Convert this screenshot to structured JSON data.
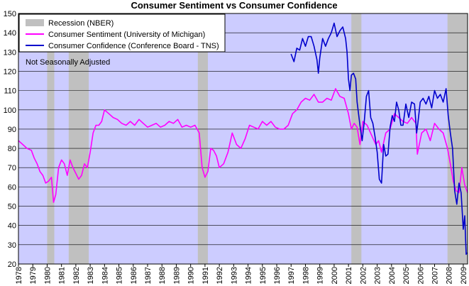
{
  "chart_data": {
    "type": "line",
    "title": "Consumer Sentiment vs Consumer Confidence",
    "annotation": "Not Seasonally Adjusted",
    "xlabel": "",
    "ylabel": "",
    "xlim": [
      1978.0,
      2009.3
    ],
    "ylim": [
      20,
      150
    ],
    "grid": true,
    "legend_placement": "top-left",
    "y_ticks": [
      20,
      30,
      40,
      50,
      60,
      70,
      80,
      90,
      100,
      110,
      120,
      130,
      140,
      150
    ],
    "x_ticks": [
      "1978",
      "1979",
      "1980",
      "1981",
      "1982",
      "1983",
      "1984",
      "1985",
      "1986",
      "1987",
      "1988",
      "1989",
      "1990",
      "1991",
      "1992",
      "1993",
      "1994",
      "1995",
      "1996",
      "1997",
      "1998",
      "1999",
      "2000",
      "2001",
      "2002",
      "2003",
      "2004",
      "2005",
      "2006",
      "2007",
      "2008",
      "2009"
    ],
    "colors": {
      "plot_background": "#ccccff",
      "recession": "#c0c0c0",
      "sentiment": "#ff00ff",
      "confidence": "#0000cc",
      "grid": "#000000"
    },
    "recessions": {
      "name": "Recession (NBER)",
      "periods": [
        [
          1980.0,
          1980.5
        ],
        [
          1981.5,
          1982.9
        ],
        [
          1990.5,
          1991.2
        ],
        [
          2001.2,
          2001.9
        ],
        [
          2007.9,
          2009.3
        ]
      ]
    },
    "series": [
      {
        "name": "Consumer Sentiment (University of Michigan)",
        "color": "#ff00ff",
        "x": [
          1978.0,
          1978.3,
          1978.6,
          1978.9,
          1979.1,
          1979.3,
          1979.5,
          1979.7,
          1979.9,
          1980.1,
          1980.3,
          1980.45,
          1980.6,
          1980.8,
          1981.0,
          1981.2,
          1981.4,
          1981.6,
          1981.8,
          1982.0,
          1982.2,
          1982.4,
          1982.6,
          1982.8,
          1983.0,
          1983.2,
          1983.4,
          1983.6,
          1983.8,
          1984.0,
          1984.3,
          1984.6,
          1984.9,
          1985.2,
          1985.5,
          1985.8,
          1986.1,
          1986.4,
          1986.7,
          1987.0,
          1987.3,
          1987.6,
          1987.9,
          1988.2,
          1988.5,
          1988.8,
          1989.1,
          1989.4,
          1989.7,
          1990.0,
          1990.3,
          1990.6,
          1990.8,
          1991.0,
          1991.2,
          1991.4,
          1991.6,
          1991.8,
          1992.0,
          1992.3,
          1992.6,
          1992.9,
          1993.2,
          1993.5,
          1993.8,
          1994.1,
          1994.4,
          1994.7,
          1995.0,
          1995.3,
          1995.6,
          1995.9,
          1996.2,
          1996.5,
          1996.8,
          1997.1,
          1997.4,
          1997.7,
          1998.0,
          1998.3,
          1998.6,
          1998.9,
          1999.2,
          1999.5,
          1999.8,
          2000.1,
          2000.4,
          2000.7,
          2001.0,
          2001.2,
          2001.4,
          2001.6,
          2001.8,
          2002.0,
          2002.3,
          2002.6,
          2002.9,
          2003.1,
          2003.3,
          2003.6,
          2003.9,
          2004.2,
          2004.5,
          2004.8,
          2005.1,
          2005.4,
          2005.7,
          2005.8,
          2006.1,
          2006.4,
          2006.7,
          2007.0,
          2007.3,
          2007.6,
          2007.9,
          2008.1,
          2008.3,
          2008.5,
          2008.7,
          2008.9,
          2009.1,
          2009.3
        ],
        "values": [
          84,
          82,
          80,
          79,
          75,
          72,
          68,
          66,
          62,
          63,
          65,
          52,
          56,
          70,
          74,
          72,
          66,
          74,
          70,
          67,
          64,
          66,
          72,
          70,
          78,
          88,
          92,
          92,
          94,
          100,
          98,
          96,
          95,
          93,
          92,
          94,
          92,
          95,
          93,
          91,
          92,
          93,
          91,
          92,
          94,
          93,
          95,
          91,
          92,
          91,
          92,
          88,
          70,
          65,
          68,
          80,
          79,
          76,
          70,
          72,
          78,
          88,
          82,
          80,
          85,
          92,
          91,
          90,
          94,
          92,
          94,
          91,
          90,
          90,
          92,
          98,
          100,
          104,
          106,
          105,
          108,
          104,
          104,
          106,
          105,
          111,
          107,
          106,
          98,
          90,
          93,
          91,
          82,
          94,
          92,
          87,
          82,
          84,
          78,
          88,
          90,
          98,
          96,
          94,
          93,
          96,
          93,
          77,
          88,
          90,
          84,
          93,
          90,
          88,
          80,
          72,
          63,
          58,
          57,
          70,
          61,
          57
        ]
      },
      {
        "name": "Consumer Confidence (Conference Board - TNS)",
        "color": "#0000cc",
        "x": [
          1997.0,
          1997.2,
          1997.4,
          1997.6,
          1997.8,
          1998.0,
          1998.2,
          1998.4,
          1998.6,
          1998.8,
          1998.9,
          1999.0,
          1999.2,
          1999.4,
          1999.6,
          1999.8,
          2000.0,
          2000.2,
          2000.4,
          2000.6,
          2000.8,
          2000.9,
          2001.0,
          2001.1,
          2001.2,
          2001.35,
          2001.5,
          2001.6,
          2001.8,
          2001.95,
          2002.1,
          2002.25,
          2002.4,
          2002.55,
          2002.7,
          2002.85,
          2003.0,
          2003.15,
          2003.3,
          2003.45,
          2003.6,
          2003.75,
          2003.9,
          2004.05,
          2004.2,
          2004.35,
          2004.5,
          2004.65,
          2004.8,
          2005.0,
          2005.2,
          2005.4,
          2005.6,
          2005.75,
          2005.85,
          2006.0,
          2006.2,
          2006.4,
          2006.6,
          2006.8,
          2007.0,
          2007.2,
          2007.4,
          2007.6,
          2007.8,
          2007.95,
          2008.1,
          2008.25,
          2008.4,
          2008.55,
          2008.7,
          2008.85,
          2009.0,
          2009.1,
          2009.2,
          2009.25
        ],
        "values": [
          129,
          125,
          132,
          131,
          137,
          133,
          138,
          138,
          133,
          126,
          119,
          127,
          137,
          133,
          137,
          140,
          145,
          138,
          141,
          143,
          137,
          130,
          116,
          110,
          118,
          119,
          116,
          104,
          92,
          84,
          94,
          107,
          110,
          96,
          93,
          86,
          78,
          64,
          62,
          82,
          76,
          77,
          91,
          97,
          94,
          104,
          100,
          92,
          92,
          103,
          96,
          104,
          103,
          88,
          94,
          104,
          106,
          103,
          107,
          101,
          110,
          106,
          108,
          104,
          111,
          97,
          88,
          80,
          58,
          51,
          62,
          57,
          38,
          45,
          25,
          26
        ]
      }
    ]
  }
}
